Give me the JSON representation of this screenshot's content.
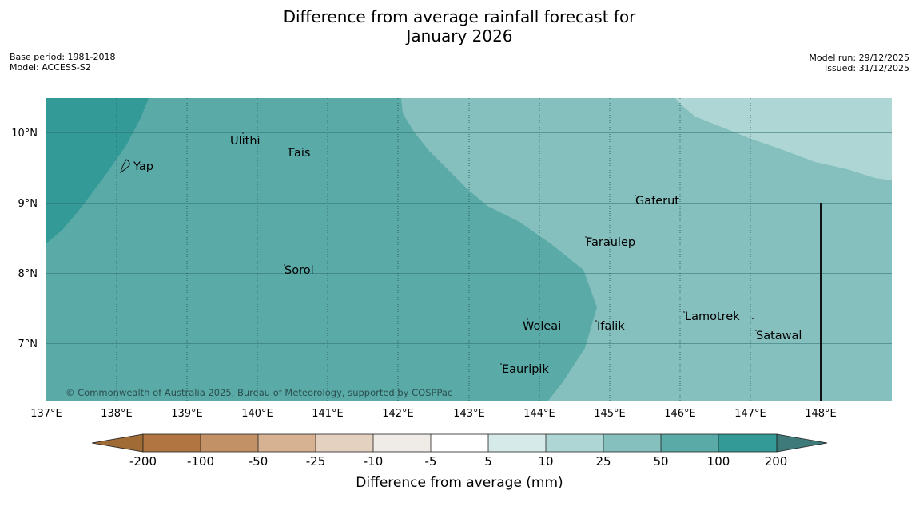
{
  "title_line1": "Difference from average rainfall forecast for",
  "title_line2": "January 2026",
  "meta_left": {
    "base_period": "Base period: 1981-2018",
    "model": "Model: ACCESS-S2"
  },
  "meta_right": {
    "model_run": "Model run: 29/12/2025",
    "issued": "Issued: 31/12/2025"
  },
  "map": {
    "places": [
      "Ulithi",
      "Fais",
      "Yap",
      "Gaferut",
      "Faraulep",
      "Sorol",
      "Lamotrek",
      "Woleai",
      "Ifalik",
      "Satawal",
      "Eauripik"
    ],
    "lat_labels": [
      "10°N",
      "9°N",
      "8°N",
      "7°N"
    ],
    "lon_labels": [
      "137°E",
      "138°E",
      "139°E",
      "140°E",
      "141°E",
      "142°E",
      "143°E",
      "144°E",
      "145°E",
      "146°E",
      "147°E",
      "148°E"
    ],
    "copyright": "© Commonwealth of Australia 2025, Bureau of Meteorology, supported by COSPPac",
    "region_colors": {
      "dark_teal": "#339a98",
      "mid_teal": "#5aaaa8",
      "light_teal": "#85c0bf",
      "pale_teal": "#add6d5"
    }
  },
  "colorbar": {
    "title": "Difference from average (mm)",
    "ticks": [
      "-200",
      "-100",
      "-50",
      "-25",
      "-10",
      "-5",
      "5",
      "10",
      "25",
      "50",
      "100",
      "200"
    ],
    "colors": [
      "#a06b35",
      "#b07540",
      "#c29266",
      "#d6b292",
      "#e5d1c0",
      "#efebe6",
      "#ffffff",
      "#d6eae9",
      "#add6d5",
      "#85c0bf",
      "#5aaaa8",
      "#339a98",
      "#3d7a79"
    ]
  }
}
